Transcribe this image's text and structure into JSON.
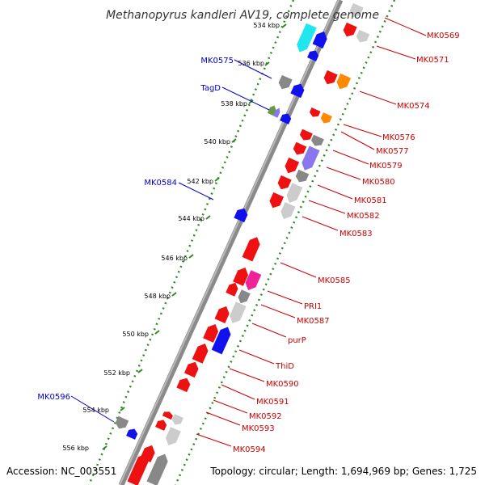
{
  "title": "Methanopyrus kandleri AV19, complete genome",
  "footer": {
    "accession": "Accession: NC_003551",
    "summary": "Topology: circular; Length: 1,694,969 bp; Genes: 1,725"
  },
  "ticks": [
    "534 kbp",
    "536 kbp",
    "538 kbp",
    "540 kbp",
    "542 kbp",
    "544 kbp",
    "546 kbp",
    "548 kbp",
    "550 kbp",
    "552 kbp",
    "554 kbp",
    "556 kbp"
  ],
  "labels_left": [
    "MK0575",
    "TagD",
    "MK0584",
    "MK0596"
  ],
  "labels_right": [
    "MK0569",
    "MK0571",
    "MK0574",
    "MK0576",
    "MK0577",
    "MK0579",
    "MK0580",
    "MK0581",
    "MK0582",
    "MK0583",
    "MK0585",
    "PRI1",
    "MK0587",
    "purP",
    "ThiD",
    "MK0590",
    "MK0591",
    "MK0592",
    "MK0593",
    "MK0594"
  ],
  "colors": {
    "backbone": "#8a8a8a",
    "ticks": "#2e8b22",
    "label_red": "#cc0000",
    "label_blue": "#0000cc",
    "gene_red": "#ee1111",
    "gene_blue": "#1111ee",
    "gene_gray": "#888888",
    "gene_light": "#cccccc",
    "gene_orange": "#ff8800",
    "gene_cyan": "#22e6ee",
    "gene_purple": "#8877ee",
    "gene_pink": "#ee2299",
    "gene_green": "#669944"
  }
}
